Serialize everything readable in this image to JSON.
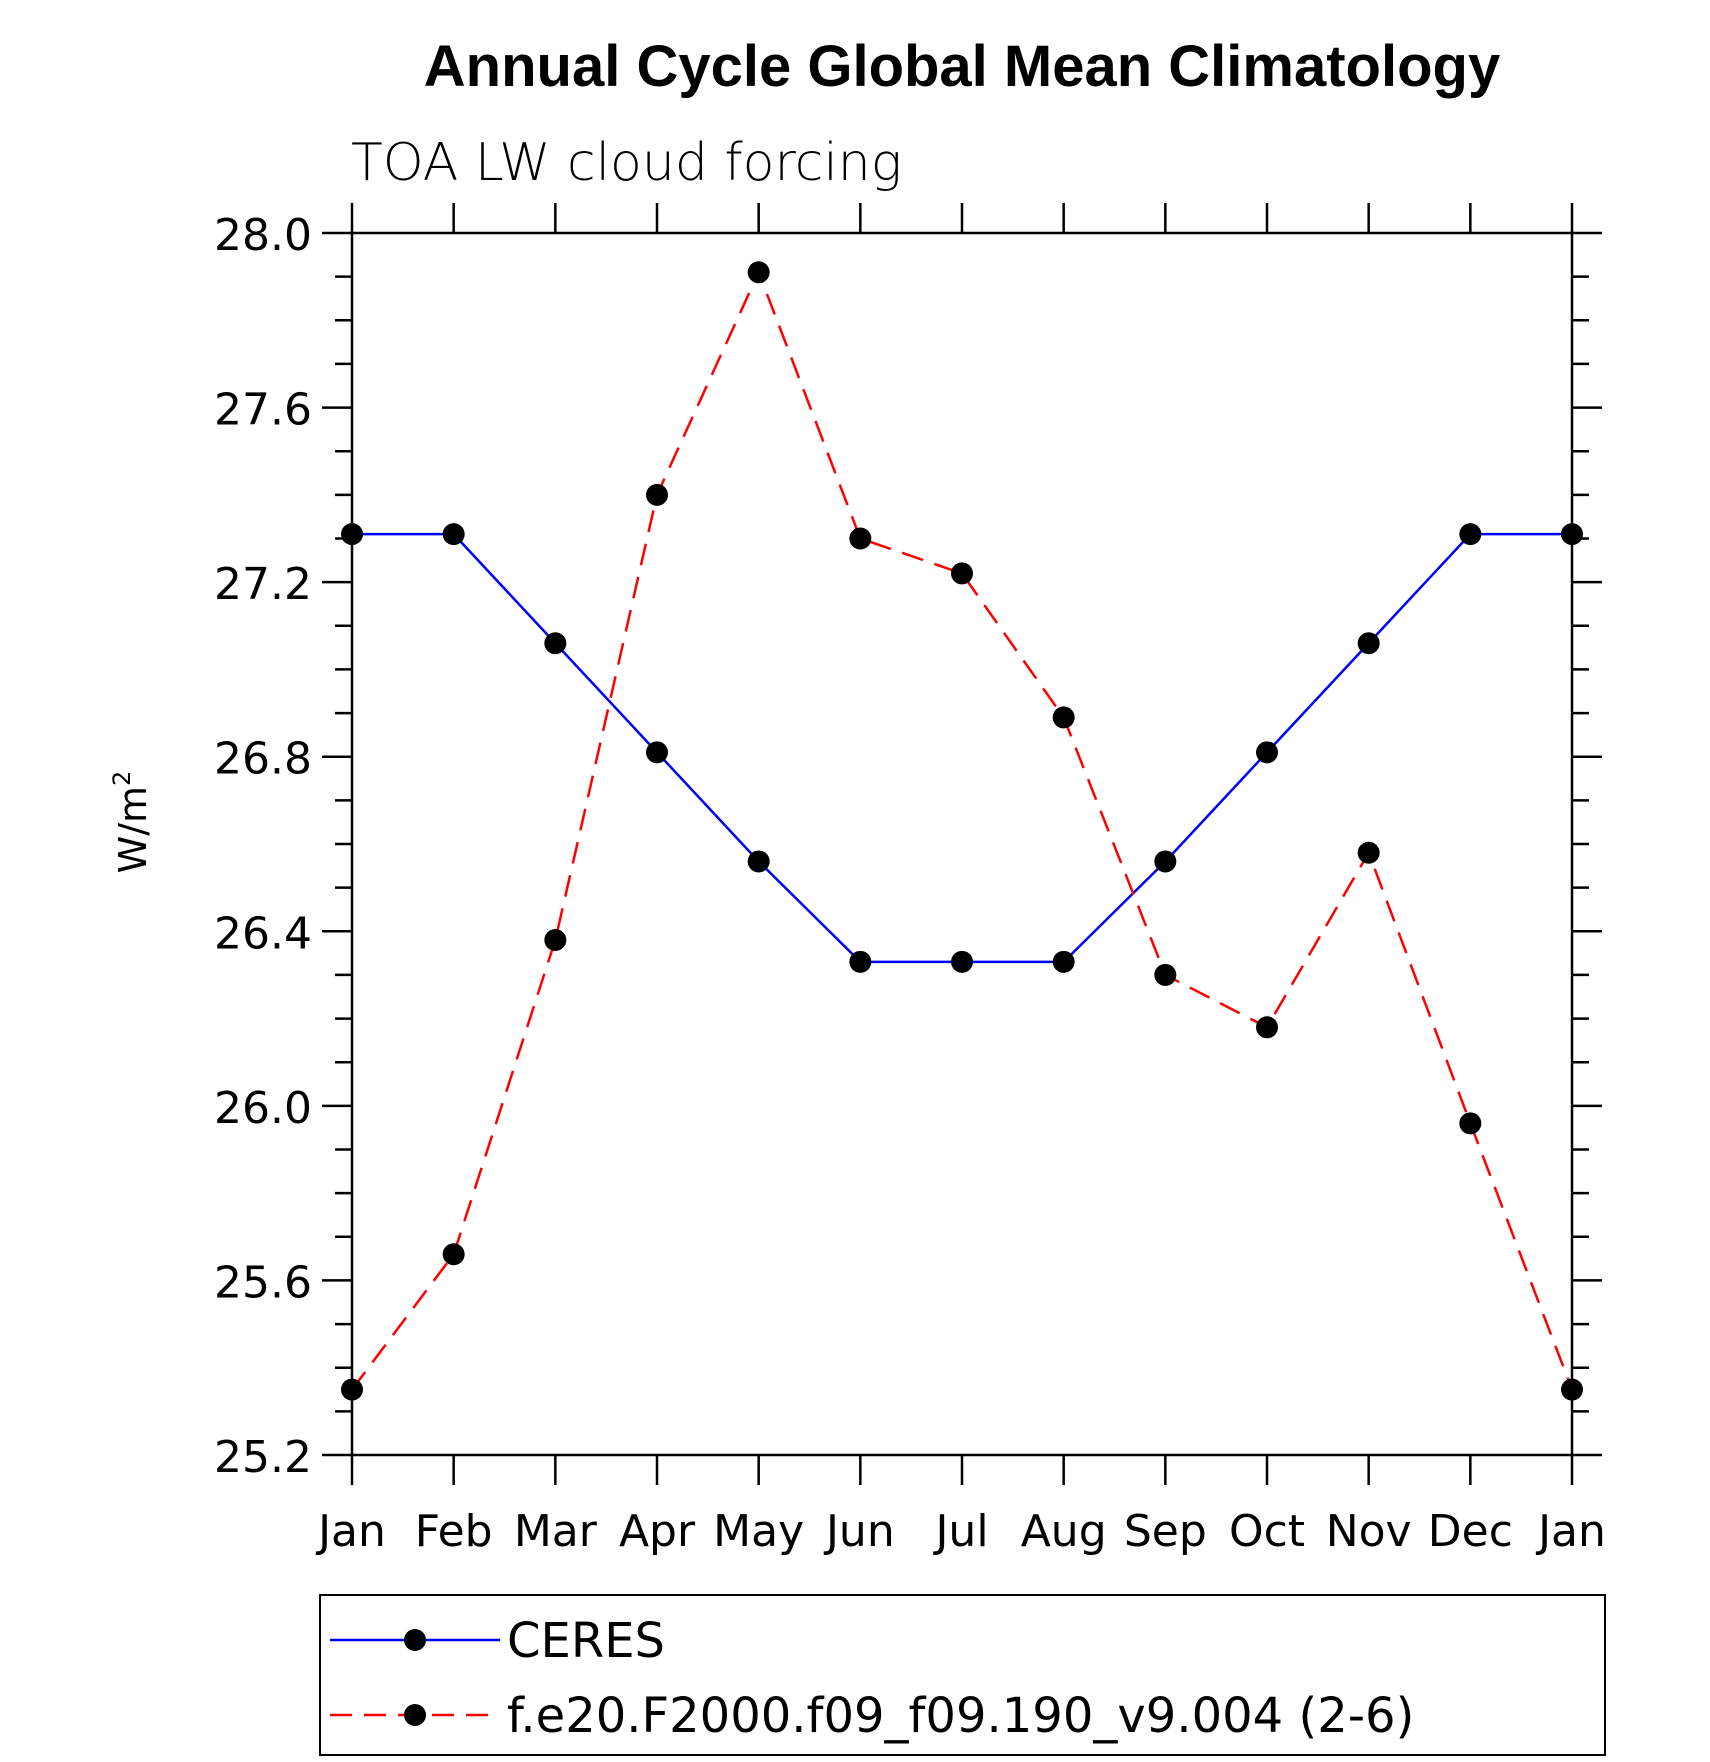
{
  "chart_data": {
    "type": "line",
    "title": "Annual Cycle Global Mean Climatology",
    "subtitle": "TOA LW cloud forcing",
    "ylabel": "W/m",
    "ylabel_sup": "2",
    "categories": [
      "Jan",
      "Feb",
      "Mar",
      "Apr",
      "May",
      "Jun",
      "Jul",
      "Aug",
      "Sep",
      "Oct",
      "Nov",
      "Dec",
      "Jan"
    ],
    "ylim": [
      25.2,
      28.0
    ],
    "yticks": [
      25.2,
      25.6,
      26.0,
      26.4,
      26.8,
      27.2,
      27.6,
      28.0
    ],
    "ytick_labels": [
      "25.2",
      "25.6",
      "26.0",
      "26.4",
      "26.8",
      "27.2",
      "27.6",
      "28.0"
    ],
    "legend_position": "bottom",
    "grid": false,
    "series": [
      {
        "name": "CERES",
        "color": "#0000ff",
        "dash": "solid",
        "values": [
          27.31,
          27.31,
          27.06,
          26.81,
          26.56,
          26.33,
          26.33,
          26.33,
          26.56,
          26.81,
          27.06,
          27.31,
          27.31
        ]
      },
      {
        "name": "f.e20.F2000.f09_f09.190_v9.004 (2-6)",
        "color": "#ff0000",
        "dash": "dashed",
        "values": [
          25.35,
          25.66,
          26.38,
          27.4,
          27.91,
          27.3,
          27.22,
          26.89,
          26.3,
          26.18,
          26.58,
          25.96,
          25.35
        ]
      }
    ]
  }
}
